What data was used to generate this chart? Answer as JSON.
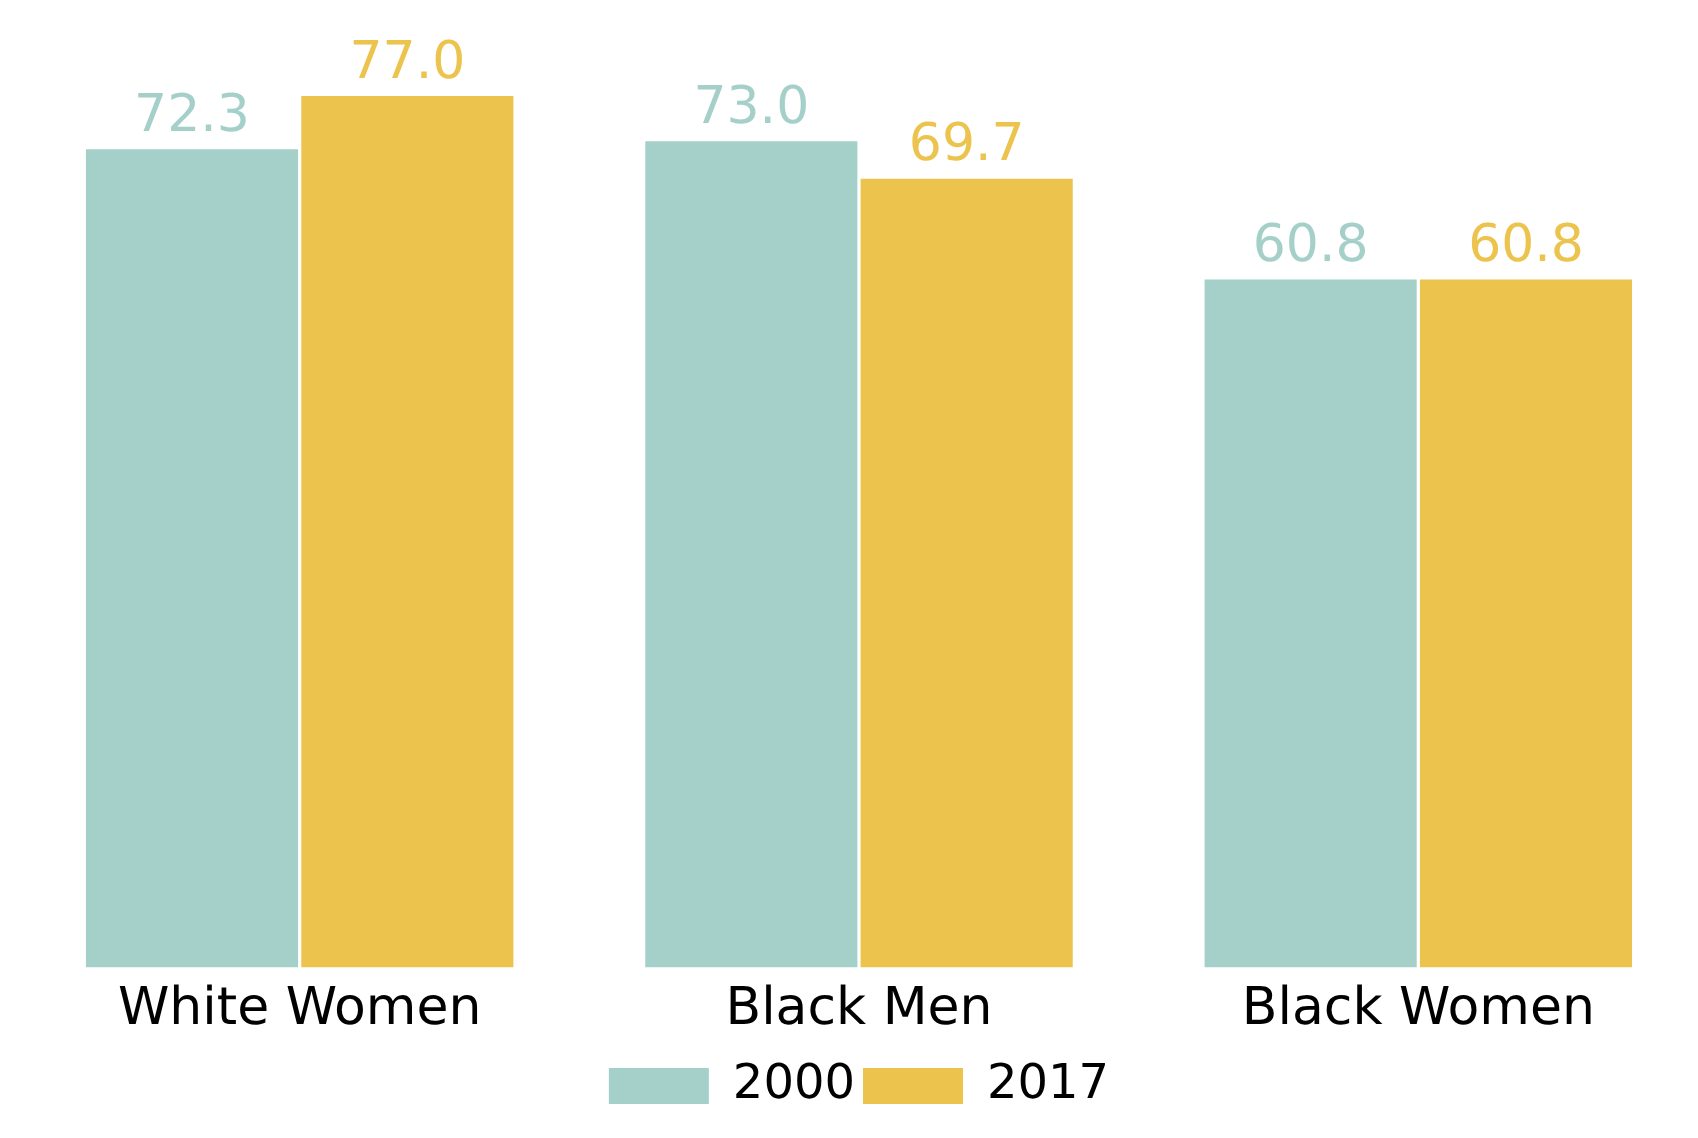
{
  "chart_data": {
    "type": "bar",
    "categories": [
      "White Women",
      "Black Men",
      "Black Women"
    ],
    "series": [
      {
        "name": "2000",
        "color": "#a5d0ca",
        "values": [
          72.3,
          73.0,
          60.8
        ],
        "value_labels": [
          "72.3",
          "73.0",
          "60.8"
        ]
      },
      {
        "name": "2017",
        "color": "#ebc34d",
        "values": [
          77.0,
          69.7,
          60.8
        ],
        "value_labels": [
          "77.0",
          "69.7",
          "60.8"
        ]
      }
    ],
    "ylim": [
      0,
      77
    ],
    "tick_labels": "x",
    "grid": false,
    "legend": "bottom"
  }
}
